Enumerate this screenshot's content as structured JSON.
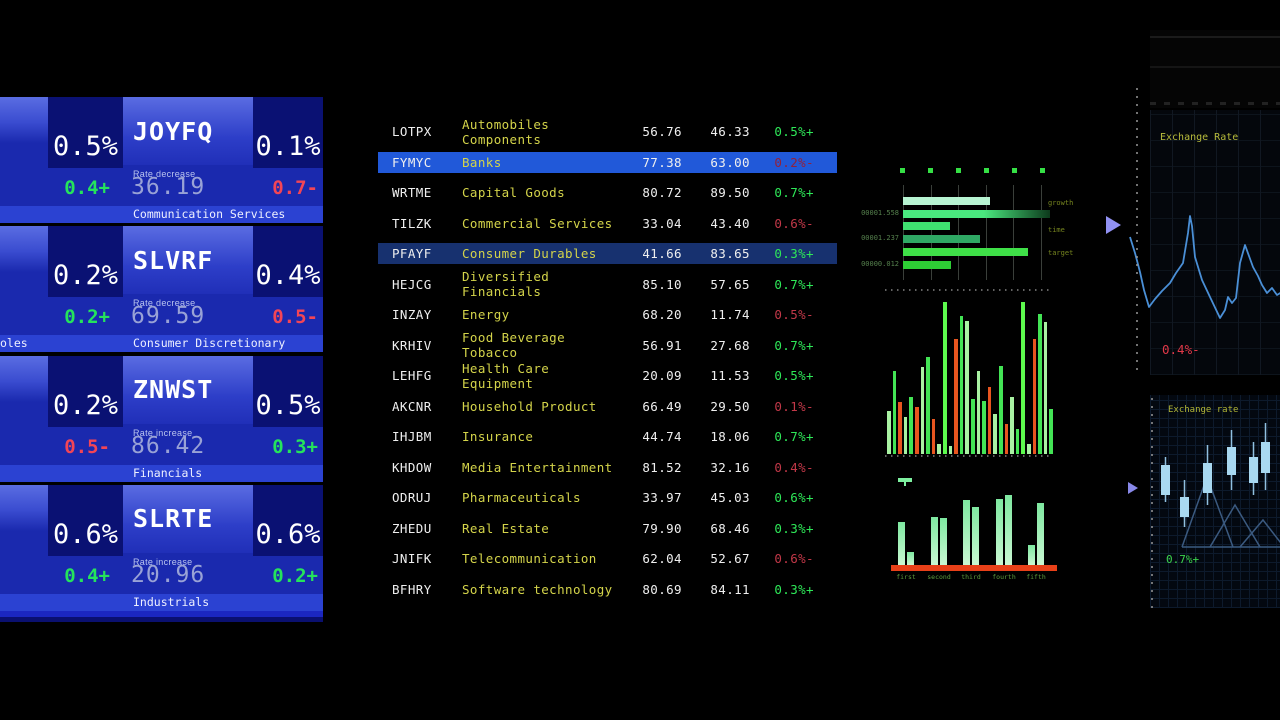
{
  "left_panel": {
    "cutoff_label": "oles",
    "cards": [
      {
        "left_pct": "0.5%",
        "ticker": "JOYFQ",
        "rate_label": "Rate decrease",
        "right_pct": "0.1%",
        "left_val": "0.4+",
        "left_dir": "up",
        "price": "36.19",
        "right_val": "0.7-",
        "right_dir": "down",
        "sector": "Communication Services"
      },
      {
        "left_pct": "0.2%",
        "ticker": "SLVRF",
        "rate_label": "Rate decrease",
        "right_pct": "0.4%",
        "left_val": "0.2+",
        "left_dir": "up",
        "price": "69.59",
        "right_val": "0.5-",
        "right_dir": "down",
        "sector": "Consumer Discretionary"
      },
      {
        "left_pct": "0.2%",
        "ticker": "ZNWST",
        "rate_label": "Rate increase",
        "right_pct": "0.5%",
        "left_val": "0.5-",
        "left_dir": "down",
        "price": "86.42",
        "right_val": "0.3+",
        "right_dir": "up",
        "sector": "Financials"
      },
      {
        "left_pct": "0.6%",
        "ticker": "SLRTE",
        "rate_label": "Rate increase",
        "right_pct": "0.6%",
        "left_val": "0.4+",
        "left_dir": "up",
        "price": "20.96",
        "right_val": "0.2+",
        "right_dir": "up",
        "sector": "Industrials"
      }
    ]
  },
  "sector_table": {
    "rows": [
      {
        "ticker": "LOTPX",
        "sector": "Automobiles Components",
        "value1": "56.76",
        "value2": "46.33",
        "change": "0.5%+",
        "dir": "up",
        "highlight": "none"
      },
      {
        "ticker": "FYMYC",
        "sector": "Banks",
        "value1": "77.38",
        "value2": "63.00",
        "change": "0.2%-",
        "dir": "down",
        "highlight": "bright"
      },
      {
        "ticker": "WRTME",
        "sector": "Capital Goods",
        "value1": "80.72",
        "value2": "89.50",
        "change": "0.7%+",
        "dir": "up",
        "highlight": "none"
      },
      {
        "ticker": "TILZK",
        "sector": "Commercial Services",
        "value1": "33.04",
        "value2": "43.40",
        "change": "0.6%-",
        "dir": "down",
        "highlight": "none"
      },
      {
        "ticker": "PFAYF",
        "sector": "Consumer Durables",
        "value1": "41.66",
        "value2": "83.65",
        "change": "0.3%+",
        "dir": "up",
        "highlight": "dark"
      },
      {
        "ticker": "HEJCG",
        "sector": "Diversified Financials",
        "value1": "85.10",
        "value2": "57.65",
        "change": "0.7%+",
        "dir": "up",
        "highlight": "none"
      },
      {
        "ticker": "INZAY",
        "sector": "Energy",
        "value1": "68.20",
        "value2": "11.74",
        "change": "0.5%-",
        "dir": "down",
        "highlight": "none"
      },
      {
        "ticker": "KRHIV",
        "sector": "Food Beverage Tobacco",
        "value1": "56.91",
        "value2": "27.68",
        "change": "0.7%+",
        "dir": "up",
        "highlight": "none"
      },
      {
        "ticker": "LEHFG",
        "sector": "Health Care Equipment",
        "value1": "20.09",
        "value2": "11.53",
        "change": "0.5%+",
        "dir": "up",
        "highlight": "none"
      },
      {
        "ticker": "AKCNR",
        "sector": "Household Product",
        "value1": "66.49",
        "value2": "29.50",
        "change": "0.1%-",
        "dir": "down",
        "highlight": "none"
      },
      {
        "ticker": "IHJBM",
        "sector": "Insurance",
        "value1": "44.74",
        "value2": "18.06",
        "change": "0.7%+",
        "dir": "up",
        "highlight": "none"
      },
      {
        "ticker": "KHDOW",
        "sector": "Media Entertainment",
        "value1": "81.52",
        "value2": "32.16",
        "change": "0.4%-",
        "dir": "down",
        "highlight": "none"
      },
      {
        "ticker": "ODRUJ",
        "sector": "Pharmaceuticals",
        "value1": "33.97",
        "value2": "45.03",
        "change": "0.6%+",
        "dir": "up",
        "highlight": "none"
      },
      {
        "ticker": "ZHEDU",
        "sector": "Real Estate",
        "value1": "79.90",
        "value2": "68.46",
        "change": "0.3%+",
        "dir": "up",
        "highlight": "none"
      },
      {
        "ticker": "JNIFK",
        "sector": "Telecommunication",
        "value1": "62.04",
        "value2": "52.67",
        "change": "0.6%-",
        "dir": "down",
        "highlight": "none"
      },
      {
        "ticker": "BFHRY",
        "sector": "Software technology",
        "value1": "80.69",
        "value2": "84.11",
        "change": "0.3%+",
        "dir": "up",
        "highlight": "none"
      }
    ]
  },
  "chart_data": [
    {
      "id": "growth-hbar",
      "type": "bar",
      "orientation": "horizontal",
      "values": [
        87,
        147,
        47,
        77,
        125,
        48
      ],
      "max": 152,
      "colors": [
        "#b7f4d2",
        "linear-gradient(90deg,#4ae87f 0%,#4ae87f 55%,#0d3a1c 100%)",
        "#3fe070",
        "#2fa864",
        "#3fe048",
        "#2ecf35"
      ],
      "axis_labels": [
        "",
        "00001.558",
        "",
        "00001.237",
        "",
        "00000.012"
      ],
      "series_labels": [
        "growth",
        "time",
        "target"
      ],
      "series_label_y": [
        39,
        66,
        89
      ],
      "marker_count": 6,
      "grid_on": true
    },
    {
      "id": "market-vbar",
      "type": "bar",
      "orientation": "vertical",
      "max": 152,
      "palette": {
        "lg": "#a9f2a3",
        "pg": "#43e455",
        "or": "#e8551f",
        "bg": "#5dfa4d"
      },
      "bars": [
        [
          43,
          "lg"
        ],
        [
          83,
          "pg"
        ],
        [
          52,
          "or"
        ],
        [
          37,
          "lg"
        ],
        [
          57,
          "pg"
        ],
        [
          47,
          "or"
        ],
        [
          87,
          "lg"
        ],
        [
          97,
          "pg"
        ],
        [
          35,
          "or"
        ],
        [
          10,
          "lg"
        ],
        [
          152,
          "bg"
        ],
        [
          8,
          "lg"
        ],
        [
          115,
          "or"
        ],
        [
          138,
          "pg"
        ],
        [
          133,
          "lg"
        ],
        [
          55,
          "pg"
        ],
        [
          83,
          "lg"
        ],
        [
          53,
          "pg"
        ],
        [
          67,
          "or"
        ],
        [
          40,
          "lg"
        ],
        [
          88,
          "pg"
        ],
        [
          30,
          "or"
        ],
        [
          57,
          "lg"
        ],
        [
          25,
          "pg"
        ],
        [
          152,
          "bg"
        ],
        [
          10,
          "lg"
        ],
        [
          115,
          "or"
        ],
        [
          140,
          "pg"
        ],
        [
          132,
          "lg"
        ],
        [
          45,
          "pg"
        ]
      ]
    },
    {
      "id": "grouped-bar",
      "type": "bar",
      "orientation": "vertical-grouped",
      "groups": [
        {
          "label": "first",
          "values": [
            43,
            13
          ]
        },
        {
          "label": "second",
          "values": [
            48,
            47
          ]
        },
        {
          "label": "third",
          "values": [
            65,
            58
          ]
        },
        {
          "label": "fourth",
          "values": [
            66,
            70
          ]
        },
        {
          "label": "fifth",
          "values": [
            20,
            62
          ]
        }
      ],
      "group_x": [
        14,
        47,
        79,
        112,
        144
      ],
      "baseline_color": "#e84018"
    },
    {
      "id": "exchange-rate-line",
      "type": "line",
      "title": "Exchange Rate",
      "change": "0.4%-",
      "line_color": "#4a8fd6",
      "points": [
        [
          2,
          127
        ],
        [
          7,
          143
        ],
        [
          12,
          162
        ],
        [
          16,
          180
        ],
        [
          21,
          197
        ],
        [
          27,
          189
        ],
        [
          34,
          181
        ],
        [
          42,
          173
        ],
        [
          48,
          163
        ],
        [
          55,
          153
        ],
        [
          60,
          123
        ],
        [
          62,
          106
        ],
        [
          64,
          116
        ],
        [
          67,
          147
        ],
        [
          74,
          170
        ],
        [
          82,
          187
        ],
        [
          92,
          208
        ],
        [
          97,
          200
        ],
        [
          100,
          187
        ],
        [
          104,
          193
        ],
        [
          108,
          188
        ],
        [
          112,
          153
        ],
        [
          117,
          135
        ],
        [
          121,
          146
        ],
        [
          125,
          157
        ],
        [
          130,
          166
        ],
        [
          134,
          175
        ],
        [
          139,
          183
        ],
        [
          144,
          178
        ],
        [
          149,
          185
        ],
        [
          154,
          182
        ]
      ]
    },
    {
      "id": "exchange-rate-candles",
      "type": "candlestick",
      "title": "Exchange rate",
      "change": "0.7%+",
      "candle_color": "#a8d8f0",
      "wick_color": "#90c0e0",
      "mountain_color": "#3b5a80",
      "candles": [
        [
          11,
          70,
          100,
          62,
          107
        ],
        [
          30,
          102,
          122,
          85,
          132
        ],
        [
          53,
          68,
          98,
          50,
          110
        ],
        [
          77,
          52,
          80,
          35,
          95
        ],
        [
          99,
          62,
          88,
          47,
          100
        ],
        [
          111,
          47,
          78,
          28,
          95
        ],
        [
          130,
          97,
          122,
          85,
          130
        ]
      ],
      "mountains": [
        [
          [
            32,
            152
          ],
          [
            57,
            82
          ],
          [
            83,
            152
          ]
        ],
        [
          [
            60,
            152
          ],
          [
            85,
            110
          ],
          [
            110,
            152
          ]
        ],
        [
          [
            90,
            152
          ],
          [
            113,
            125
          ],
          [
            134,
            152
          ]
        ]
      ],
      "baseline": [
        [
          32,
          152
        ],
        [
          134,
          152
        ]
      ]
    }
  ]
}
